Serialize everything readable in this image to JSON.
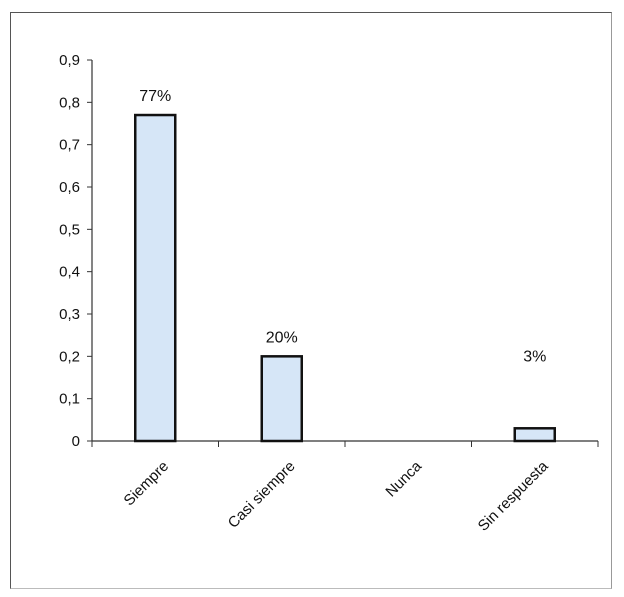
{
  "chart_data": {
    "type": "bar",
    "categories": [
      "Siempre",
      "Casi siempre",
      "Nunca",
      "Sin respuesta"
    ],
    "values": [
      0.77,
      0.2,
      0.0,
      0.03
    ],
    "data_labels": [
      "77%",
      "20%",
      "",
      "3%"
    ],
    "yticks": [
      "0",
      "0,1",
      "0,2",
      "0,3",
      "0,4",
      "0,5",
      "0,6",
      "0,7",
      "0,8",
      "0,9"
    ],
    "ylim": [
      0,
      0.9
    ],
    "grid": false,
    "legend": "none",
    "colors": {
      "bar_fill": "#d6e6f7",
      "bar_stroke": "#111111",
      "axis": "#333333"
    }
  }
}
